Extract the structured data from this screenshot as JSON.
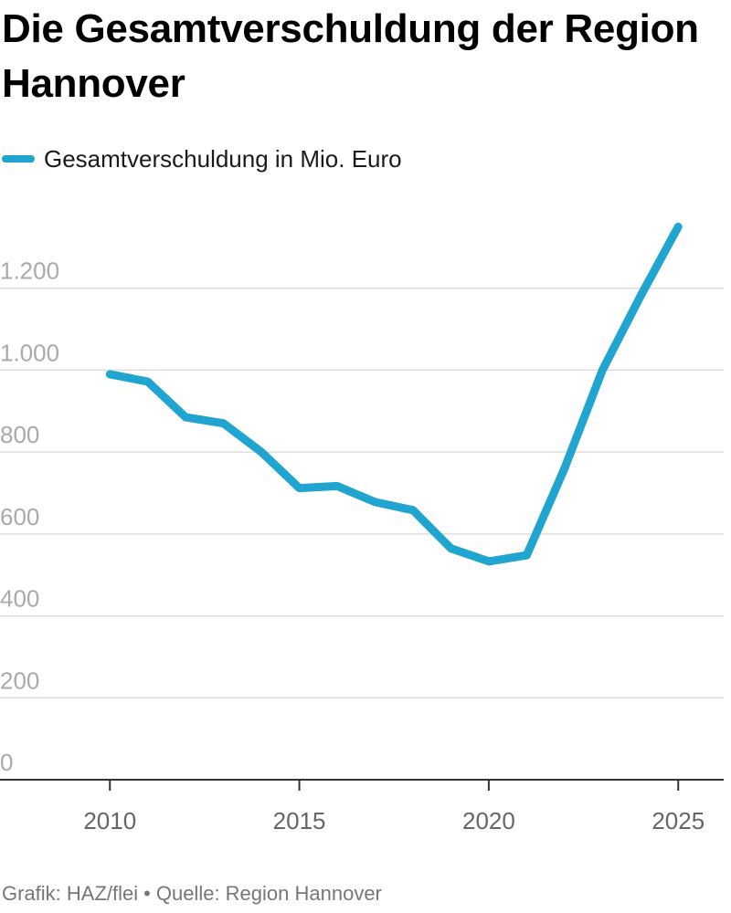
{
  "chart_data": {
    "type": "line",
    "title": "Die Gesamtverschuldung der Region Hannover",
    "xlabel": "",
    "ylabel": "",
    "xlim": [
      2007.1,
      2026.2
    ],
    "ylim": [
      0,
      1400
    ],
    "x_ticks": [
      2010,
      2015,
      2020,
      2025
    ],
    "y_ticks": [
      0,
      200,
      400,
      600,
      800,
      1000,
      1200
    ],
    "y_tick_labels": [
      "0",
      "200",
      "400",
      "600",
      "800",
      "1.000",
      "1.200"
    ],
    "grid": true,
    "legend": "top-left",
    "series": [
      {
        "name": "Gesamtverschuldung in Mio. Euro",
        "color": "#1fa5d0",
        "x": [
          2010,
          2011,
          2012,
          2013,
          2014,
          2015,
          2016,
          2017,
          2018,
          2019,
          2020,
          2021,
          2022,
          2023,
          2024,
          2025
        ],
        "values": [
          990,
          972,
          885,
          870,
          800,
          712,
          717,
          678,
          658,
          565,
          533,
          548,
          760,
          1000,
          1180,
          1350
        ]
      }
    ]
  },
  "footer": {
    "credit": "Grafik: HAZ/flei",
    "separator": "•",
    "source": "Quelle: Region Hannover"
  }
}
